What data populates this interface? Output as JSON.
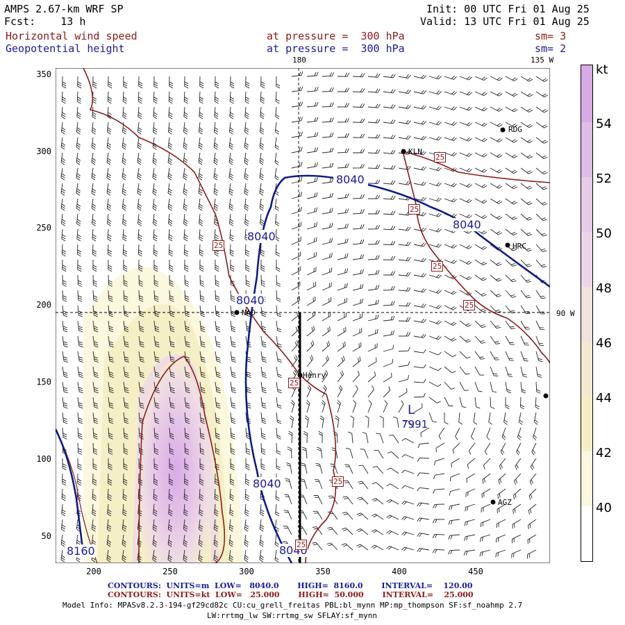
{
  "header": {
    "model": "AMPS 2.67-km WRF SP",
    "fcst": "Fcst:    13 h",
    "init": "Init: 00 UTC Fri 01 Aug 25",
    "valid": "Valid: 13 UTC Fri 01 Aug 25",
    "field1": "Horizontal wind speed",
    "field2": "Geopotential height",
    "pressure1": "at pressure =  300 hPa",
    "pressure2": "at pressure =  300 hPa",
    "sm1": "sm= 3",
    "sm2": "sm= 2"
  },
  "map": {
    "lon_180": "180",
    "lon_135w": "135 W",
    "lon_90w": "90 W",
    "x_ticks": [
      "200",
      "250",
      "300",
      "350",
      "400",
      "450"
    ],
    "y_ticks": [
      "350",
      "300",
      "250",
      "200",
      "150",
      "100",
      "50"
    ],
    "contour_labels": [
      "8040",
      "8040",
      "8040",
      "8040",
      "8040",
      "8040",
      "8160"
    ],
    "speed_labels": [
      "25",
      "25",
      "25",
      "25",
      "25",
      "25",
      "25",
      "25"
    ],
    "low_label": "L",
    "low_value": "7991",
    "stations": [
      "RDG",
      "KLN",
      "HRC",
      "NAD",
      "Henry",
      "AGZ"
    ],
    "colors": {
      "height_contour": "#0d1a8c",
      "speed_contour": "#8b1a1a",
      "shade_40_42": "#fbf8dd",
      "shade_44": "#f5efc6",
      "shade_48": "#f0dde3",
      "shade_50_52": "#e6c6e8",
      "shade_54": "#d9abe6"
    }
  },
  "colorbar": {
    "unit": "kt",
    "labels": [
      "54",
      "52",
      "50",
      "48",
      "46",
      "44",
      "42",
      "40"
    ]
  },
  "footer": {
    "row1": "CONTOURS:  UNITS=m  LOW=   8040.0       HIGH=  8160.0       INTERVAL=    120.00",
    "row2": "CONTOURS:  UNITS=kt  LOW=   25.000       HIGH=  50.000       INTERVAL=    25.000",
    "model_info": "Model Info: MPASv8.2.3-194-gf29cd82c CU:cu_grell_freitas PBL:bl_mynn MP:mp_thompson SF:sf_noahmp 2.7",
    "model_info2": "LW:rrtmg_lw SW:rrtmg_sw SFLAY:sf_mynn"
  }
}
